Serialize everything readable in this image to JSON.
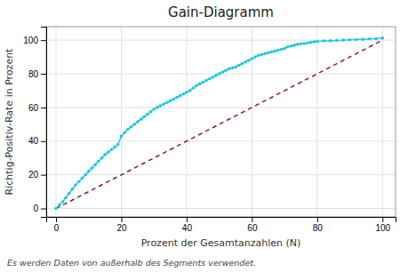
{
  "chart_data": {
    "type": "line",
    "title": "Gain-Diagramm",
    "xlabel": "Prozent der Gesamtanzahlen (N)",
    "ylabel": "Richtig-Positiv-Rate in Prozent",
    "footnote": "Es werden Daten von außerhalb des Segments verwendet.",
    "xlim": [
      -3,
      104
    ],
    "ylim": [
      -5,
      108
    ],
    "xticks": [
      0,
      20,
      40,
      60,
      80,
      100
    ],
    "yticks": [
      0,
      20,
      40,
      60,
      80,
      100
    ],
    "grid": true,
    "series": [
      {
        "color": "#8b2020",
        "line_style": "dashed",
        "x": [
          0,
          100
        ],
        "values": [
          0,
          100
        ]
      },
      {
        "color": "#1fc8e3",
        "line_style": "solid",
        "marker": "circle",
        "x": [
          0,
          1,
          2,
          3,
          4,
          5,
          6,
          7,
          8,
          9,
          10,
          11,
          12,
          13,
          14,
          15,
          16,
          17,
          18,
          19,
          20,
          21,
          22,
          23,
          24,
          25,
          26,
          27,
          28,
          29,
          30,
          31,
          32,
          33,
          34,
          35,
          36,
          37,
          38,
          39,
          40,
          41,
          42,
          43,
          44,
          45,
          46,
          47,
          48,
          49,
          50,
          51,
          52,
          53,
          54,
          55,
          56,
          57,
          58,
          59,
          60,
          61,
          62,
          63,
          64,
          65,
          66,
          67,
          68,
          69,
          70,
          71,
          72,
          73,
          74,
          75,
          76,
          77,
          78,
          79,
          80,
          82,
          84,
          86,
          88,
          90,
          92,
          94,
          96,
          98,
          100
        ],
        "values": [
          0,
          2,
          4,
          6.5,
          9,
          11.5,
          14,
          16,
          18,
          20,
          22,
          24,
          26,
          28,
          30,
          32,
          33.5,
          35,
          36.5,
          38,
          43,
          45,
          47,
          48.5,
          50,
          51.5,
          53,
          54.5,
          56,
          57.5,
          59,
          60,
          61,
          62,
          63,
          64,
          65,
          66,
          67,
          68,
          69,
          70,
          71.5,
          73,
          74,
          75,
          76,
          77,
          78,
          79,
          80,
          81,
          82,
          83,
          83.5,
          84,
          85,
          86,
          87,
          88,
          89,
          90,
          91,
          91.5,
          92,
          92.5,
          93,
          93.5,
          94,
          94.5,
          95,
          96,
          96.5,
          97,
          97.5,
          97.8,
          98,
          98.3,
          98.6,
          99,
          99.2,
          99.5,
          99.6,
          99.8,
          100,
          100.2,
          100.3,
          100.5,
          100.7,
          100.9,
          101.2
        ]
      }
    ]
  }
}
